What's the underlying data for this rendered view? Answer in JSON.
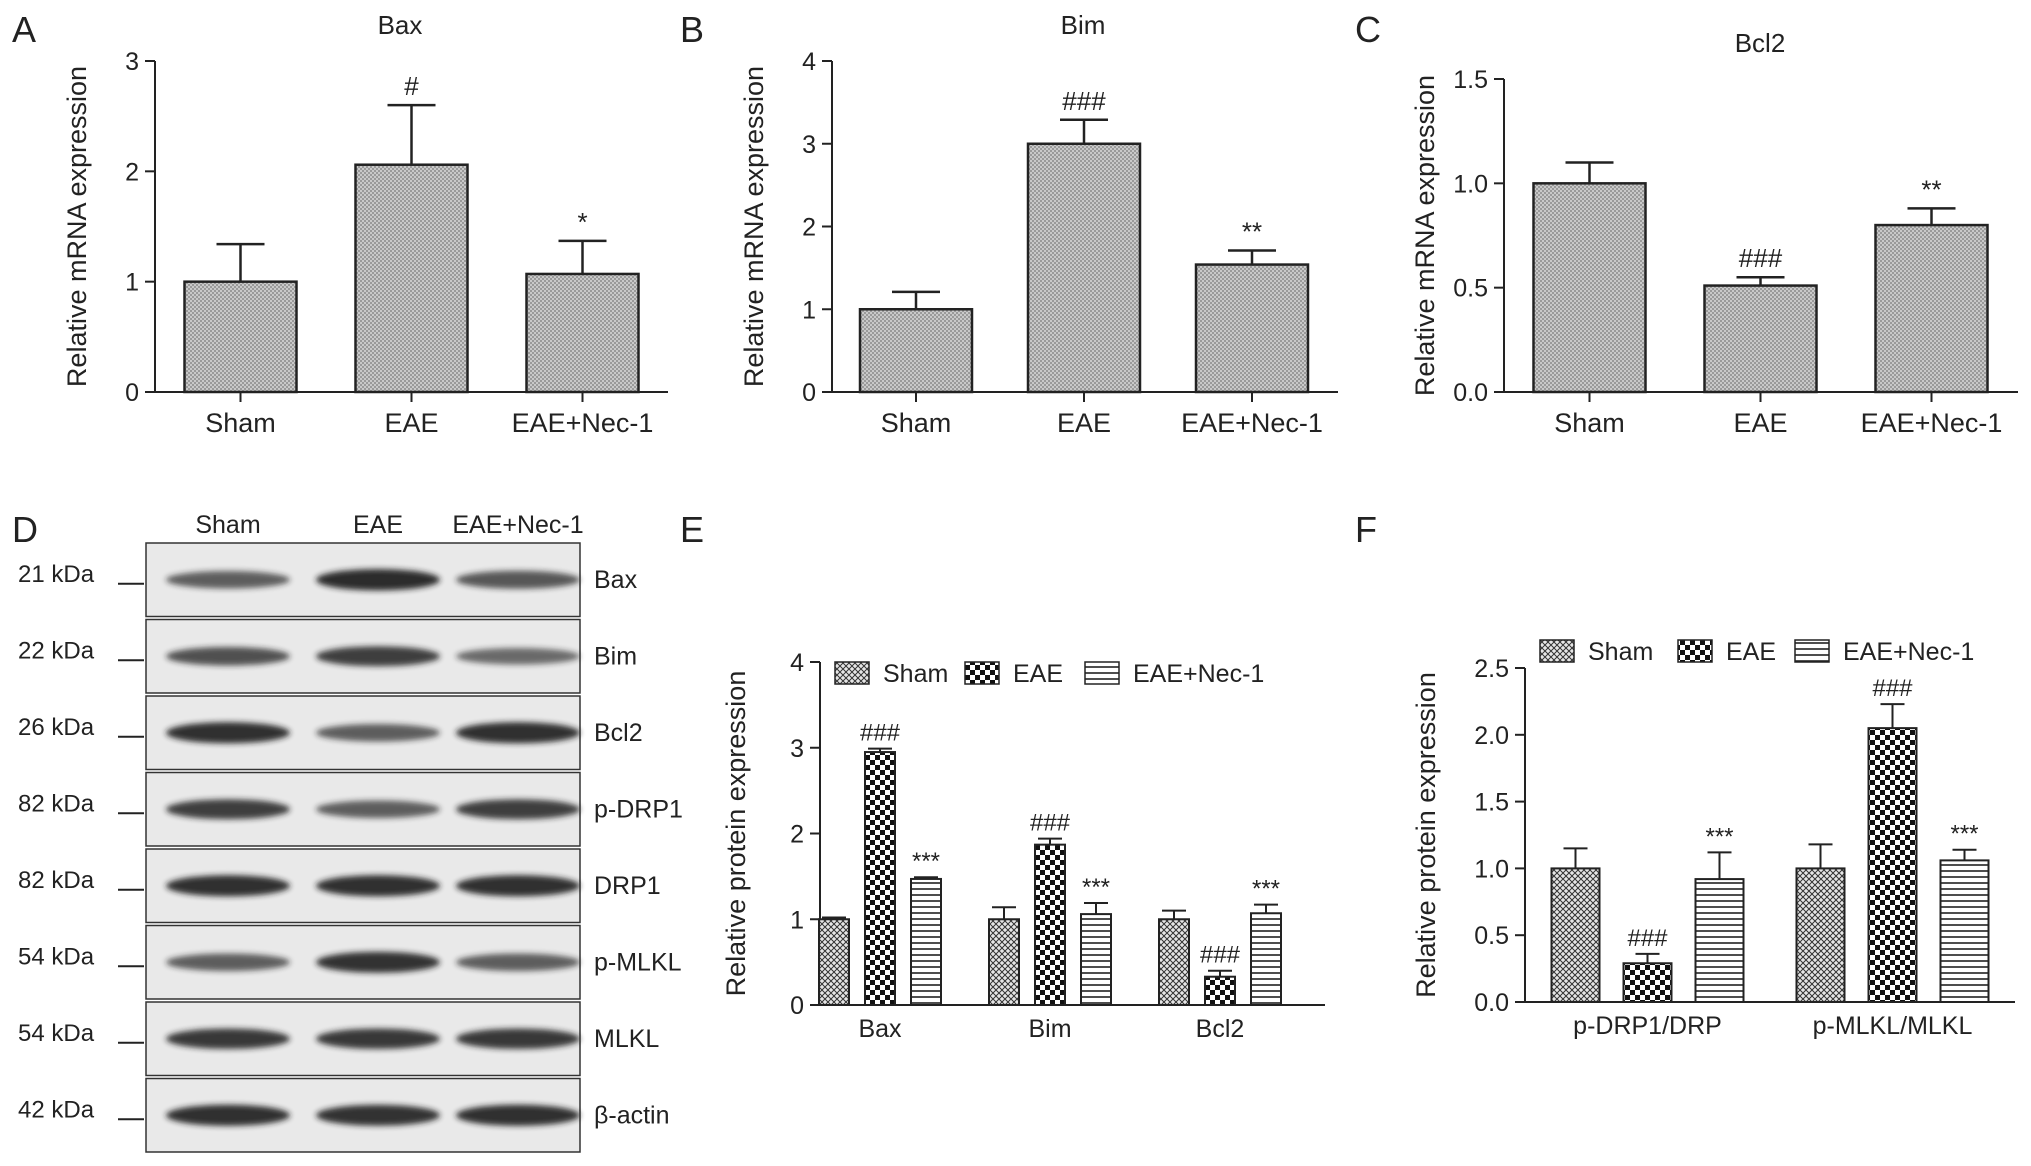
{
  "panel_labels": {
    "a": "A",
    "b": "B",
    "c": "C",
    "d": "D",
    "e": "E",
    "f": "F"
  },
  "colors": {
    "bar_fill": "#cfcfcf",
    "stroke": "#222222",
    "blot_bg": "#e9e9e9",
    "band": "#1c1c1c"
  },
  "chart_data": [
    {
      "panel": "A",
      "type": "bar",
      "title": "Bax",
      "ylabel": "Relative mRNA expression",
      "xlabel": "",
      "ylim": [
        0,
        3
      ],
      "yticks": [
        "0",
        "1",
        "2",
        "3"
      ],
      "ytick_values": [
        0,
        1,
        2,
        3
      ],
      "categories": [
        "Sham",
        "EAE",
        "EAE+Nec-1"
      ],
      "values": [
        1.0,
        2.06,
        1.07
      ],
      "errors": [
        0.34,
        0.54,
        0.3
      ],
      "annotations": [
        "",
        "#",
        "*"
      ],
      "legend": null
    },
    {
      "panel": "B",
      "type": "bar",
      "title": "Bim",
      "ylabel": "Relative mRNA expression",
      "xlabel": "",
      "ylim": [
        0,
        4
      ],
      "yticks": [
        "0",
        "1",
        "2",
        "3",
        "4"
      ],
      "ytick_values": [
        0,
        1,
        2,
        3,
        4
      ],
      "categories": [
        "Sham",
        "EAE",
        "EAE+Nec-1"
      ],
      "values": [
        1.0,
        3.0,
        1.54
      ],
      "errors": [
        0.21,
        0.29,
        0.17
      ],
      "annotations": [
        "",
        "###",
        "**"
      ],
      "legend": null
    },
    {
      "panel": "C",
      "type": "bar",
      "title": "Bcl2",
      "ylabel": "Relative mRNA expression",
      "xlabel": "",
      "ylim": [
        0,
        1.5
      ],
      "yticks": [
        "0.0",
        "0.5",
        "1.0",
        "1.5"
      ],
      "ytick_values": [
        0,
        0.5,
        1.0,
        1.5
      ],
      "categories": [
        "Sham",
        "EAE",
        "EAE+Nec-1"
      ],
      "values": [
        1.0,
        0.51,
        0.8
      ],
      "errors": [
        0.1,
        0.04,
        0.08
      ],
      "annotations": [
        "",
        "###",
        "**"
      ],
      "legend": null
    },
    {
      "panel": "E",
      "type": "bar",
      "title": "",
      "ylabel": "Relative protein expression",
      "xlabel": "",
      "ylim": [
        0,
        4
      ],
      "yticks": [
        "0",
        "1",
        "2",
        "3",
        "4"
      ],
      "ytick_values": [
        0,
        1,
        2,
        3,
        4
      ],
      "categories": [
        "Bax",
        "Bim",
        "Bcl2"
      ],
      "series": [
        {
          "name": "Sham",
          "pattern": "cross",
          "values": [
            1.0,
            1.0,
            1.0
          ],
          "errors": [
            0.02,
            0.14,
            0.1
          ],
          "annotations": [
            "",
            "",
            ""
          ]
        },
        {
          "name": "EAE",
          "pattern": "checker",
          "values": [
            2.95,
            1.87,
            0.33
          ],
          "errors": [
            0.04,
            0.07,
            0.07
          ],
          "annotations": [
            "###",
            "###",
            "###"
          ]
        },
        {
          "name": "EAE+Nec-1",
          "pattern": "hlines",
          "values": [
            1.47,
            1.06,
            1.07
          ],
          "errors": [
            0.02,
            0.13,
            0.1
          ],
          "annotations": [
            "***",
            "***",
            "***"
          ]
        }
      ],
      "legend": "top"
    },
    {
      "panel": "F",
      "type": "bar",
      "title": "",
      "ylabel": "Relative protein expression",
      "xlabel": "",
      "ylim": [
        0,
        2.5
      ],
      "yticks": [
        "0.0",
        "0.5",
        "1.0",
        "1.5",
        "2.0",
        "2.5"
      ],
      "ytick_values": [
        0,
        0.5,
        1.0,
        1.5,
        2.0,
        2.5
      ],
      "categories": [
        "p-DRP1/DRP",
        "p-MLKL/MLKL"
      ],
      "series": [
        {
          "name": "Sham",
          "pattern": "cross",
          "values": [
            1.0,
            1.0
          ],
          "errors": [
            0.15,
            0.18
          ],
          "annotations": [
            "",
            ""
          ]
        },
        {
          "name": "EAE",
          "pattern": "checker",
          "values": [
            0.29,
            2.05
          ],
          "errors": [
            0.07,
            0.18
          ],
          "annotations": [
            "###",
            "###"
          ]
        },
        {
          "name": "EAE+Nec-1",
          "pattern": "hlines",
          "values": [
            0.92,
            1.06
          ],
          "errors": [
            0.2,
            0.08
          ],
          "annotations": [
            "***",
            "***"
          ]
        }
      ],
      "legend": "top"
    }
  ],
  "blot": {
    "panel": "D",
    "lanes": [
      "Sham",
      "EAE",
      "EAE+Nec-1"
    ],
    "rows": [
      {
        "protein": "Bax",
        "kda": "21 kDa",
        "intensity": [
          0.55,
          0.95,
          0.6
        ]
      },
      {
        "protein": "Bim",
        "kda": "22 kDa",
        "intensity": [
          0.65,
          0.8,
          0.45
        ]
      },
      {
        "protein": "Bcl2",
        "kda": "26 kDa",
        "intensity": [
          0.92,
          0.55,
          0.92
        ]
      },
      {
        "protein": "p-DRP1",
        "kda": "82 kDa",
        "intensity": [
          0.8,
          0.55,
          0.8
        ]
      },
      {
        "protein": "DRP1",
        "kda": "82 kDa",
        "intensity": [
          0.92,
          0.92,
          0.92
        ]
      },
      {
        "protein": "p-MLKL",
        "kda": "54 kDa",
        "intensity": [
          0.55,
          0.9,
          0.55
        ]
      },
      {
        "protein": "MLKL",
        "kda": "54 kDa",
        "intensity": [
          0.85,
          0.85,
          0.85
        ]
      },
      {
        "protein": "β-actin",
        "kda": "42 kDa",
        "intensity": [
          0.92,
          0.9,
          0.92
        ]
      }
    ]
  }
}
